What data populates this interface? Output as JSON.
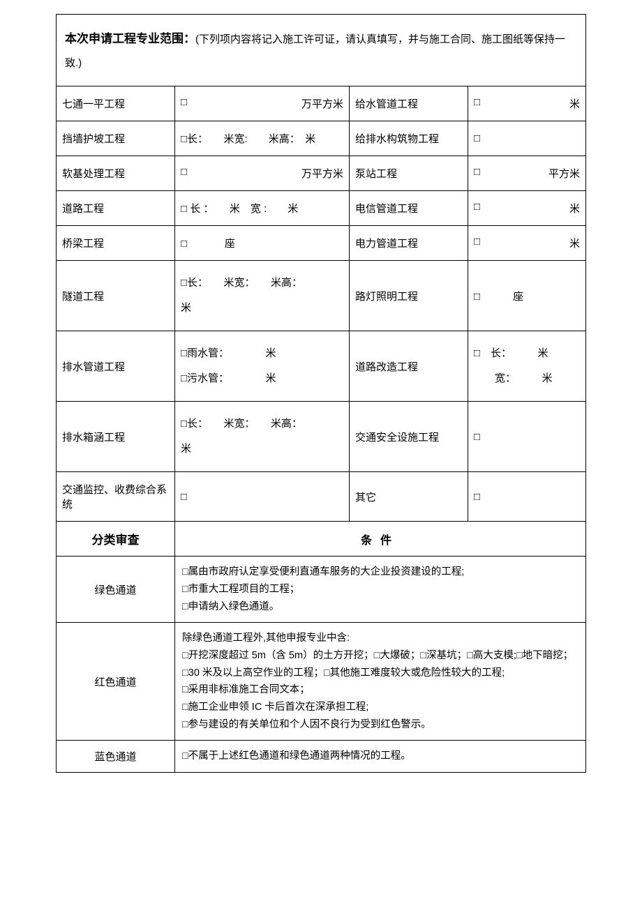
{
  "header": {
    "bold_prefix": "本次申请工程专业范围：",
    "note": "(下列项内容将记入施工许可证，请认真填写，并与施工合同、施工图纸等保持一致.)"
  },
  "rows": [
    {
      "l1": "七通一平工程",
      "l2_cb": "□",
      "l2_tail": "万平方米",
      "l3": "给水管道工程",
      "l4_cb": "□",
      "l4_tail": "米"
    },
    {
      "l1": "挡墙护坡工程",
      "l2_full": "□长：　　米宽:　　米高：　米",
      "l3": "给排水构筑物工程",
      "l4_cb": "□",
      "l4_tail": ""
    },
    {
      "l1": "软基处理工程",
      "l2_cb": "□",
      "l2_tail": "万平方米",
      "l3": "泵站工程",
      "l4_cb": "□",
      "l4_tail": "平方米"
    },
    {
      "l1": "道路工程",
      "l2_full": "□ 长 ：　　米　宽 :　　米",
      "l3": "电信管道工程",
      "l4_cb": "□",
      "l4_tail": "米"
    },
    {
      "l1": "桥梁工程",
      "l2_cb": "□",
      "l2_mid": "座",
      "l3": "电力管道工程",
      "l4_cb": "□",
      "l4_tail": "米"
    },
    {
      "l1": "隧道工程",
      "l2_multi": [
        "□长：　　米宽：　　米高：",
        "米"
      ],
      "l3": "路灯照明工程",
      "l4_cb": "□",
      "l4_mid": "座",
      "tall": true
    },
    {
      "l1": "排水管道工程",
      "l2_multi": [
        "□雨水管：　　　　米",
        "□污水管：　　　　米"
      ],
      "l3": "道路改造工程",
      "l4_multi": [
        "□　长：　　　米",
        "　　宽：　　　米"
      ],
      "tall": true
    },
    {
      "l1": "排水箱涵工程",
      "l2_multi": [
        "□长：　　米宽：　　米高：",
        "米"
      ],
      "l3": "交通安全设施工程",
      "l4_cb": "□",
      "l4_tail": "",
      "tall": true
    },
    {
      "l1": "交通监控、收费综合系统",
      "l2_cb": "□",
      "l2_tail": "",
      "l3": "其它",
      "l4_cb": "□",
      "l4_tail": "",
      "tall": true
    }
  ],
  "category": {
    "label": "分类审查",
    "cond": "条件"
  },
  "channels": [
    {
      "label": "绿色通道",
      "lines": [
        "□属由市政府认定享受便利直通车服务的大企业投资建设的工程;",
        "□市重大工程项目的工程；",
        "□申请纳入绿色通道。"
      ]
    },
    {
      "label": "红色通道",
      "lines": [
        "除绿色通道工程外,其他申报专业中含:",
        "□开挖深度超过 5m（含 5m）的土方开挖；□大爆破；□深基坑；□高大支模;□地下暗挖；□30 米及以上高空作业的工程；□其他施工难度较大或危险性较大的工程;",
        "□采用非标准施工合同文本；",
        "□施工企业申领 IC 卡后首次在深承担工程;",
        "□参与建设的有关单位和个人因不良行为受到红色警示。"
      ]
    },
    {
      "label": "蓝色通道",
      "lines": [
        "□不属于上述红色通道和绿色通道两种情况的工程。"
      ]
    }
  ]
}
